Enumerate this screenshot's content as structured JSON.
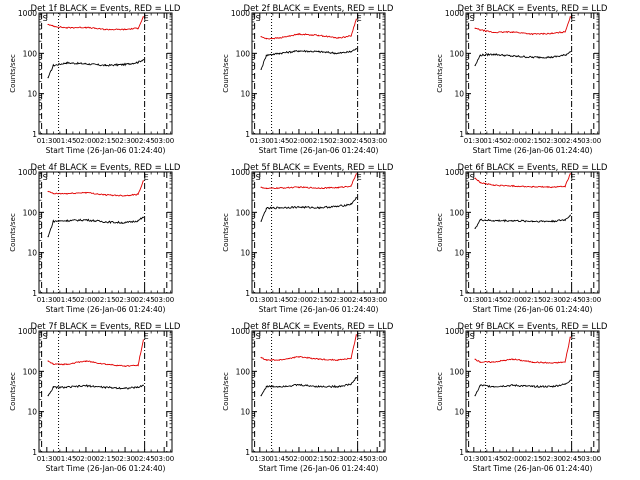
{
  "figure": {
    "panels": [
      {
        "title": "Det 1f BLACK = Events, RED = LLD"
      },
      {
        "title": "Det 2f BLACK = Events, RED = LLD"
      },
      {
        "title": "Det 3f BLACK = Events, RED = LLD"
      },
      {
        "title": "Det 4f BLACK = Events, RED = LLD"
      },
      {
        "title": "Det 5f BLACK = Events, RED = LLD"
      },
      {
        "title": "Det 6f BLACK = Events, RED = LLD"
      },
      {
        "title": "Det 7f BLACK = Events, RED = LLD"
      },
      {
        "title": "Det 8f BLACK = Events, RED = LLD"
      },
      {
        "title": "Det 9f BLACK = Events, RED = LLD"
      }
    ],
    "xlabel": "Start Time (26-Jan-06 01:24:40)",
    "ylabel": "Counts/sec",
    "x_ticks": [
      "01:30",
      "01:45",
      "02:00",
      "02:15",
      "02:30",
      "02:45",
      "03:00"
    ],
    "y_ticks": [
      "1",
      "10",
      "100",
      "1000"
    ],
    "marker_labels": [
      "S",
      "E"
    ],
    "colors": {
      "events": "#000000",
      "lld": "#e00000"
    }
  },
  "chart_data": [
    {
      "type": "line",
      "title": "Det 1f BLACK = Events, RED = LLD",
      "xlabel": "Start Time (26-Jan-06 01:24:40)",
      "ylabel": "Counts/sec",
      "y_scale": "log",
      "ylim": [
        1,
        1000
      ],
      "xlim": [
        "01:24",
        "03:06"
      ],
      "x": [
        "01:31",
        "01:35",
        "01:45",
        "02:00",
        "02:15",
        "02:30",
        "02:40",
        "02:44"
      ],
      "series": [
        {
          "name": "Events",
          "color": "#000000",
          "values": [
            25,
            50,
            58,
            55,
            50,
            53,
            60,
            70
          ]
        },
        {
          "name": "LLD",
          "color": "#e00000",
          "values": [
            520,
            470,
            430,
            440,
            390,
            390,
            420,
            800
          ]
        }
      ],
      "vertical_lines": {
        "dotted": "01:39",
        "dash_dot": "02:45",
        "dashed": [
          "01:26",
          "03:02"
        ]
      }
    },
    {
      "type": "line",
      "title": "Det 2f BLACK = Events, RED = LLD",
      "xlabel": "Start Time (26-Jan-06 01:24:40)",
      "ylabel": "Counts/sec",
      "y_scale": "log",
      "ylim": [
        1,
        1000
      ],
      "xlim": [
        "01:24",
        "03:06"
      ],
      "x": [
        "01:31",
        "01:35",
        "01:45",
        "02:00",
        "02:15",
        "02:30",
        "02:40",
        "02:44"
      ],
      "series": [
        {
          "name": "Events",
          "color": "#000000",
          "values": [
            40,
            90,
            100,
            115,
            110,
            100,
            110,
            130
          ]
        },
        {
          "name": "LLD",
          "color": "#e00000",
          "values": [
            260,
            230,
            240,
            300,
            280,
            240,
            270,
            700
          ]
        }
      ],
      "vertical_lines": {
        "dotted": "01:39",
        "dash_dot": "02:45",
        "dashed": [
          "01:26",
          "03:02"
        ]
      }
    },
    {
      "type": "line",
      "title": "Det 3f BLACK = Events, RED = LLD",
      "xlabel": "Start Time (26-Jan-06 01:24:40)",
      "ylabel": "Counts/sec",
      "y_scale": "log",
      "ylim": [
        1,
        1000
      ],
      "xlim": [
        "01:24",
        "03:06"
      ],
      "x": [
        "01:31",
        "01:35",
        "01:45",
        "02:00",
        "02:15",
        "02:30",
        "02:40",
        "02:44"
      ],
      "series": [
        {
          "name": "Events",
          "color": "#000000",
          "values": [
            50,
            90,
            95,
            85,
            80,
            80,
            90,
            110
          ]
        },
        {
          "name": "LLD",
          "color": "#e00000",
          "values": [
            420,
            380,
            330,
            340,
            300,
            310,
            340,
            800
          ]
        }
      ],
      "vertical_lines": {
        "dotted": "01:39",
        "dash_dot": "02:45",
        "dashed": [
          "01:26",
          "03:02"
        ]
      }
    },
    {
      "type": "line",
      "title": "Det 4f BLACK = Events, RED = LLD",
      "xlabel": "Start Time (26-Jan-06 01:24:40)",
      "ylabel": "Counts/sec",
      "y_scale": "log",
      "ylim": [
        1,
        1000
      ],
      "xlim": [
        "01:24",
        "03:06"
      ],
      "x": [
        "01:31",
        "01:35",
        "01:45",
        "02:00",
        "02:15",
        "02:30",
        "02:40",
        "02:44"
      ],
      "series": [
        {
          "name": "Events",
          "color": "#000000",
          "values": [
            25,
            60,
            62,
            65,
            58,
            55,
            62,
            75
          ]
        },
        {
          "name": "LLD",
          "color": "#e00000",
          "values": [
            330,
            290,
            290,
            310,
            270,
            260,
            280,
            600
          ]
        }
      ],
      "vertical_lines": {
        "dotted": "01:39",
        "dash_dot": "02:45",
        "dashed": [
          "01:26",
          "03:02"
        ]
      }
    },
    {
      "type": "line",
      "title": "Det 5f BLACK = Events, RED = LLD",
      "xlabel": "Start Time (26-Jan-06 01:24:40)",
      "ylabel": "Counts/sec",
      "y_scale": "log",
      "ylim": [
        1,
        1000
      ],
      "xlim": [
        "01:24",
        "03:06"
      ],
      "x": [
        "01:31",
        "01:35",
        "01:45",
        "02:00",
        "02:15",
        "02:30",
        "02:40",
        "02:44"
      ],
      "series": [
        {
          "name": "Events",
          "color": "#000000",
          "values": [
            60,
            125,
            130,
            135,
            130,
            140,
            160,
            230
          ]
        },
        {
          "name": "LLD",
          "color": "#e00000",
          "values": [
            420,
            390,
            400,
            420,
            400,
            410,
            450,
            900
          ]
        }
      ],
      "vertical_lines": {
        "dotted": "01:39",
        "dash_dot": "02:45",
        "dashed": [
          "01:26",
          "03:02"
        ]
      }
    },
    {
      "type": "line",
      "title": "Det 6f BLACK = Events, RED = LLD",
      "xlabel": "Start Time (26-Jan-06 01:24:40)",
      "ylabel": "Counts/sec",
      "y_scale": "log",
      "ylim": [
        1,
        1000
      ],
      "xlim": [
        "01:24",
        "03:06"
      ],
      "x": [
        "01:31",
        "01:35",
        "01:45",
        "02:00",
        "02:15",
        "02:30",
        "02:40",
        "02:44"
      ],
      "series": [
        {
          "name": "Events",
          "color": "#000000",
          "values": [
            40,
            65,
            62,
            62,
            60,
            60,
            65,
            85
          ]
        },
        {
          "name": "LLD",
          "color": "#e00000",
          "values": [
            700,
            550,
            470,
            450,
            430,
            420,
            440,
            900
          ]
        }
      ],
      "vertical_lines": {
        "dotted": "01:39",
        "dash_dot": "02:45",
        "dashed": [
          "01:26",
          "03:02"
        ]
      }
    },
    {
      "type": "line",
      "title": "Det 7f BLACK = Events, RED = LLD",
      "xlabel": "Start Time (26-Jan-06 01:24:40)",
      "ylabel": "Counts/sec",
      "y_scale": "log",
      "ylim": [
        1,
        1000
      ],
      "xlim": [
        "01:24",
        "03:06"
      ],
      "x": [
        "01:31",
        "01:35",
        "01:45",
        "02:00",
        "02:15",
        "02:30",
        "02:40",
        "02:44"
      ],
      "series": [
        {
          "name": "Events",
          "color": "#000000",
          "values": [
            25,
            40,
            40,
            44,
            40,
            38,
            40,
            45
          ]
        },
        {
          "name": "LLD",
          "color": "#e00000",
          "values": [
            180,
            150,
            150,
            180,
            150,
            135,
            140,
            600
          ]
        }
      ],
      "vertical_lines": {
        "dotted": "01:39",
        "dash_dot": "02:45",
        "dashed": [
          "01:26",
          "03:02"
        ]
      }
    },
    {
      "type": "line",
      "title": "Det 8f BLACK = Events, RED = LLD",
      "xlabel": "Start Time (26-Jan-06 01:24:40)",
      "ylabel": "Counts/sec",
      "y_scale": "log",
      "ylim": [
        1,
        1000
      ],
      "xlim": [
        "01:24",
        "03:06"
      ],
      "x": [
        "01:31",
        "01:35",
        "01:45",
        "02:00",
        "02:15",
        "02:30",
        "02:40",
        "02:44"
      ],
      "series": [
        {
          "name": "Events",
          "color": "#000000",
          "values": [
            25,
            42,
            42,
            46,
            42,
            42,
            48,
            70
          ]
        },
        {
          "name": "LLD",
          "color": "#e00000",
          "values": [
            220,
            190,
            190,
            230,
            200,
            190,
            210,
            800
          ]
        }
      ],
      "vertical_lines": {
        "dotted": "01:39",
        "dash_dot": "02:45",
        "dashed": [
          "01:26",
          "03:02"
        ]
      }
    },
    {
      "type": "line",
      "title": "Det 9f BLACK = Events, RED = LLD",
      "xlabel": "Start Time (26-Jan-06 01:24:40)",
      "ylabel": "Counts/sec",
      "y_scale": "log",
      "ylim": [
        1,
        1000
      ],
      "xlim": [
        "01:24",
        "03:06"
      ],
      "x": [
        "01:31",
        "01:35",
        "01:45",
        "02:00",
        "02:15",
        "02:30",
        "02:40",
        "02:44"
      ],
      "series": [
        {
          "name": "Events",
          "color": "#000000",
          "values": [
            25,
            45,
            42,
            45,
            42,
            42,
            48,
            60
          ]
        },
        {
          "name": "LLD",
          "color": "#e00000",
          "values": [
            200,
            170,
            170,
            200,
            170,
            160,
            170,
            700
          ]
        }
      ],
      "vertical_lines": {
        "dotted": "01:39",
        "dash_dot": "02:45",
        "dashed": [
          "01:26",
          "03:02"
        ]
      }
    }
  ]
}
